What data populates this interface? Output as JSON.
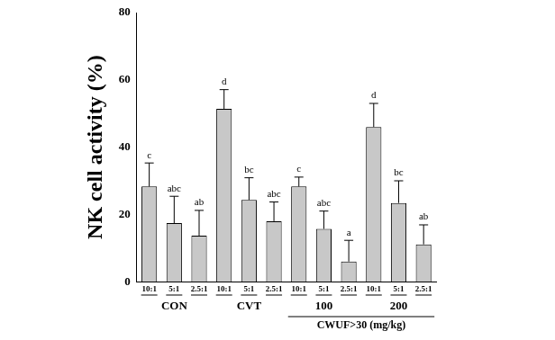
{
  "chart_data": {
    "type": "bar",
    "y_label": "NK cell activity (%)",
    "categories": [
      "10:1",
      "5:1",
      "2.5:1",
      "10:1",
      "5:1",
      "2.5:1",
      "10:1",
      "5:1",
      "2.5:1",
      "10:1",
      "5:1",
      "2.5:1"
    ],
    "values": [
      28.3,
      17.4,
      13.7,
      51.4,
      24.3,
      18.0,
      28.3,
      15.7,
      6.0,
      46.0,
      23.4,
      11.1
    ],
    "errors": [
      7.0,
      8.0,
      7.5,
      5.7,
      6.6,
      5.7,
      2.8,
      5.3,
      6.3,
      7.0,
      6.6,
      5.8
    ],
    "letters": [
      "c",
      "abc",
      "ab",
      "d",
      "bc",
      "abc",
      "c",
      "abc",
      "a",
      "d",
      "bc",
      "ab"
    ],
    "groups": [
      "CON",
      "CVT",
      "100",
      "200"
    ],
    "group_title": {
      "label": "CWUF>30 (mg/kg)",
      "groups": [
        "100",
        "200"
      ]
    },
    "color": "#c8c8c8",
    "ylim": [
      0,
      80
    ],
    "yticks": [
      0,
      20,
      40,
      60,
      80
    ],
    "grid": false
  }
}
